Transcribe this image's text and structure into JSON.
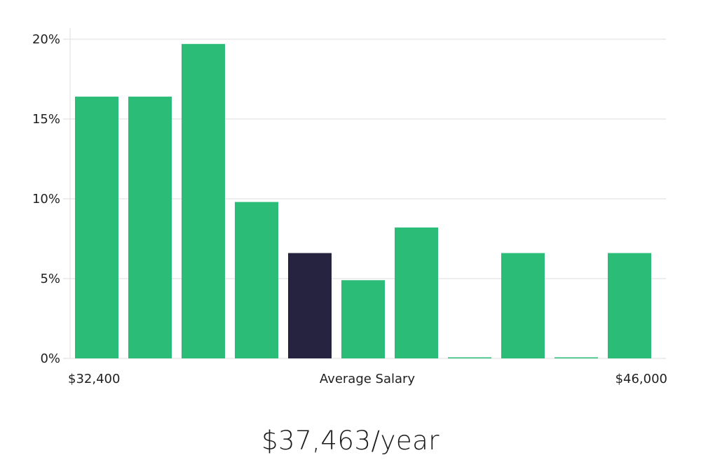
{
  "chart_data": {
    "type": "bar",
    "title": "",
    "xlabel": "Average Salary",
    "ylabel": "",
    "ylim": [
      0,
      20.7
    ],
    "y_ticks": [
      0,
      5,
      10,
      15,
      20
    ],
    "y_tick_labels": [
      "0%",
      "5%",
      "10%",
      "15%",
      "20%"
    ],
    "x_range_labels": {
      "min": "$32,400",
      "max": "$46,000"
    },
    "values": [
      16.4,
      16.4,
      19.7,
      9.8,
      6.6,
      4.9,
      8.2,
      0,
      6.6,
      0,
      6.6
    ],
    "highlight_index": 4,
    "colors": {
      "bar": "#2bbd78",
      "bar_highlight": "#262341"
    }
  },
  "summary": {
    "average_salary": "$37,463/year"
  }
}
